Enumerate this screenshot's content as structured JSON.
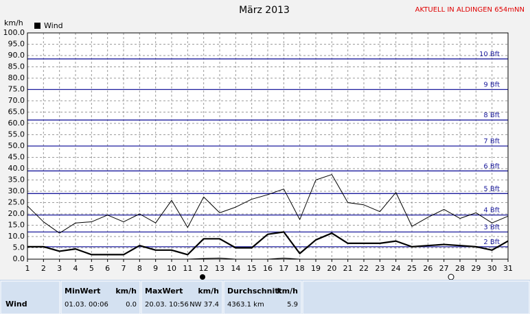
{
  "chart_data": {
    "type": "line",
    "title": "März 2013",
    "note": "AKTUELL IN ALDINGEN 654mNN",
    "y_label": "km/h",
    "x": [
      1,
      2,
      3,
      4,
      5,
      6,
      7,
      8,
      9,
      10,
      11,
      12,
      13,
      14,
      15,
      16,
      17,
      18,
      19,
      20,
      21,
      22,
      23,
      24,
      25,
      26,
      27,
      28,
      29,
      30,
      31
    ],
    "xlim": [
      1,
      31
    ],
    "xticks": [
      1,
      2,
      3,
      4,
      5,
      6,
      7,
      8,
      9,
      10,
      11,
      12,
      13,
      14,
      15,
      16,
      17,
      18,
      19,
      20,
      21,
      22,
      23,
      24,
      25,
      26,
      27,
      28,
      29,
      30,
      31
    ],
    "ylim": [
      0,
      100
    ],
    "yticks": [
      {
        "value": 0,
        "label": "0.0"
      },
      {
        "value": 5,
        "label": "5.0"
      },
      {
        "value": 10,
        "label": "10.0"
      },
      {
        "value": 15,
        "label": "15.0"
      },
      {
        "value": 20,
        "label": "20.0"
      },
      {
        "value": 25,
        "label": "25.0"
      },
      {
        "value": 30,
        "label": "30.0"
      },
      {
        "value": 35,
        "label": "35.0"
      },
      {
        "value": 40,
        "label": "40.0"
      },
      {
        "value": 45,
        "label": "45.0"
      },
      {
        "value": 50,
        "label": "50.0"
      },
      {
        "value": 55,
        "label": "55.0"
      },
      {
        "value": 60,
        "label": "60.0"
      },
      {
        "value": 65,
        "label": "65.0"
      },
      {
        "value": 70,
        "label": "70.0"
      },
      {
        "value": 75,
        "label": "75.0"
      },
      {
        "value": 80,
        "label": "80.0"
      },
      {
        "value": 85,
        "label": "85.0"
      },
      {
        "value": 90,
        "label": "90.0"
      },
      {
        "value": 95,
        "label": "95.0"
      },
      {
        "value": 100,
        "label": "100.0"
      }
    ],
    "grid": true,
    "series": [
      {
        "name": "Wind",
        "color": "#000000",
        "line_width": 2.2,
        "values": [
          5.5,
          5.5,
          3.5,
          4.5,
          2,
          2,
          2,
          6,
          4,
          4,
          2,
          9,
          9,
          5,
          5,
          11,
          12,
          2.5,
          8.5,
          11.5,
          7,
          7,
          7,
          8,
          5.5,
          6,
          6.5,
          6,
          5.5,
          4,
          8
        ]
      },
      {
        "color": "#000000",
        "line_width": 1,
        "values": [
          23.5,
          16.5,
          11.5,
          16,
          16.5,
          19.5,
          16.5,
          20,
          16,
          26,
          14,
          27.5,
          20.5,
          23,
          26.5,
          28.5,
          31,
          17.5,
          35,
          37.4,
          25,
          24,
          21,
          29.5,
          14.5,
          18.5,
          22,
          18,
          20.5,
          16,
          19
        ]
      },
      {
        "color": "#000000",
        "line_width": 1,
        "values": [
          0,
          0,
          0,
          0,
          0,
          0,
          0,
          0,
          0,
          0,
          0,
          0.3,
          0.5,
          0,
          0,
          0,
          0.5,
          0,
          0,
          0,
          0,
          0,
          0,
          0,
          0,
          0,
          0,
          0,
          0,
          0,
          0
        ]
      }
    ],
    "reference_color": "#1a1a9c",
    "reference_lines": [
      {
        "value": 5.5,
        "label": "2 Bft"
      },
      {
        "value": 12,
        "label": "3 Bft"
      },
      {
        "value": 19.5,
        "label": "4 Bft"
      },
      {
        "value": 29,
        "label": "5 Bft"
      },
      {
        "value": 39,
        "label": "6 Bft"
      },
      {
        "value": 50,
        "label": "7 Bft"
      },
      {
        "value": 61.5,
        "label": "8 Bft"
      },
      {
        "value": 75,
        "label": "9 Bft"
      },
      {
        "value": 88.5,
        "label": "10 Bft"
      }
    ]
  },
  "table": {
    "row_label": "Wind",
    "columns": [
      {
        "title": "MinWert",
        "unit": "km/h",
        "cells": [
          "01.03.  00:06",
          "0.0"
        ]
      },
      {
        "title": "MaxWert",
        "unit": "km/h",
        "cells": [
          "20.03. 10:56",
          "NW 37.4"
        ]
      },
      {
        "title": "Durchschnitt",
        "unit": "km/h",
        "cells": [
          "4363.1 km",
          "5.9"
        ]
      }
    ]
  }
}
